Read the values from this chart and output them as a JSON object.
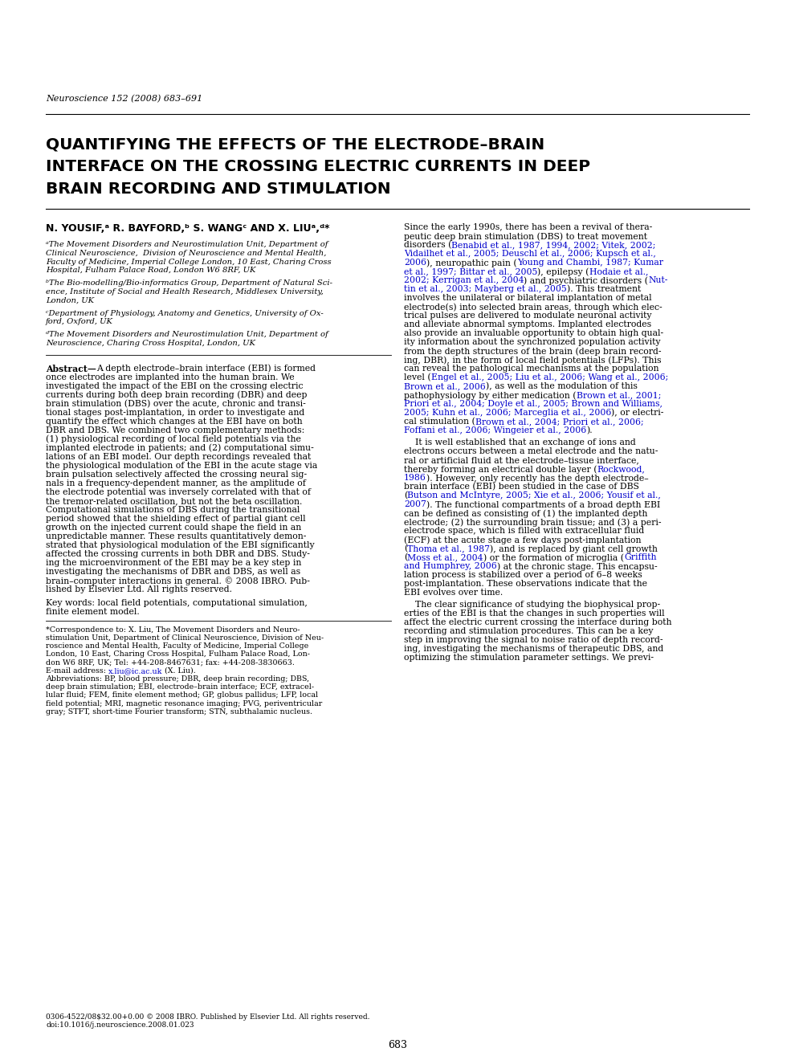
{
  "page_bg": "#ffffff",
  "journal_header": "Neuroscience 152 (2008) 683–691",
  "title_lines": [
    "QUANTIFYING THE EFFECTS OF THE ELECTRODE–BRAIN",
    "INTERFACE ON THE CROSSING ELECTRIC CURRENTS IN DEEP",
    "BRAIN RECORDING AND STIMULATION"
  ],
  "authors_line": "N. YOUSIF,ᵃ R. BAYFORD,ᵇ S. WANGᶜ AND X. LIUᵃ,ᵈ*",
  "affil_a_lines": [
    "ᵃThe Movement Disorders and Neurostimulation Unit, Department of",
    "Clinical Neuroscience,  Division of Neuroscience and Mental Health,",
    "Faculty of Medicine, Imperial College London, 10 East, Charing Cross",
    "Hospital, Fulham Palace Road, London W6 8RF, UK"
  ],
  "affil_b_lines": [
    "ᵇThe Bio-modelling/Bio-informatics Group, Department of Natural Sci-",
    "ence, Institute of Social and Health Research, Middlesex University,",
    "London, UK"
  ],
  "affil_c_lines": [
    "ᶜDepartment of Physiology, Anatomy and Genetics, University of Ox-",
    "ford, Oxford, UK"
  ],
  "affil_d_lines": [
    "ᵈThe Movement Disorders and Neurostimulation Unit, Department of",
    "Neuroscience, Charing Cross Hospital, London, UK"
  ],
  "abstract_lines": [
    [
      [
        "Abstract—",
        "bold"
      ],
      [
        "A depth electrode–brain interface (EBI) is formed",
        "normal"
      ]
    ],
    [
      [
        "once electrodes are implanted into the human brain. We",
        "normal"
      ]
    ],
    [
      [
        "investigated the impact of the EBI on the crossing electric",
        "normal"
      ]
    ],
    [
      [
        "currents during both deep brain recording (DBR) and deep",
        "normal"
      ]
    ],
    [
      [
        "brain stimulation (DBS) over the acute, chronic and transi-",
        "normal"
      ]
    ],
    [
      [
        "tional stages post-implantation, in order to investigate and",
        "normal"
      ]
    ],
    [
      [
        "quantify the effect which changes at the EBI have on both",
        "normal"
      ]
    ],
    [
      [
        "DBR and DBS. We combined two complementary methods:",
        "normal"
      ]
    ],
    [
      [
        "(1) physiological recording of local field potentials via the",
        "normal"
      ]
    ],
    [
      [
        "implanted electrode in patients; and (2) computational simu-",
        "normal"
      ]
    ],
    [
      [
        "lations of an EBI model. Our depth recordings revealed that",
        "normal"
      ]
    ],
    [
      [
        "the physiological modulation of the EBI in the acute stage via",
        "normal"
      ]
    ],
    [
      [
        "brain pulsation selectively affected the crossing neural sig-",
        "normal"
      ]
    ],
    [
      [
        "nals in a frequency-dependent manner, as the amplitude of",
        "normal"
      ]
    ],
    [
      [
        "the electrode potential was inversely correlated with that of",
        "normal"
      ]
    ],
    [
      [
        "the tremor-related oscillation, but not the beta oscillation.",
        "normal"
      ]
    ],
    [
      [
        "Computational simulations of DBS during the transitional",
        "normal"
      ]
    ],
    [
      [
        "period showed that the shielding effect of partial giant cell",
        "normal"
      ]
    ],
    [
      [
        "growth on the injected current could shape the field in an",
        "normal"
      ]
    ],
    [
      [
        "unpredictable manner. These results quantitatively demon-",
        "normal"
      ]
    ],
    [
      [
        "strated that physiological modulation of the EBI significantly",
        "normal"
      ]
    ],
    [
      [
        "affected the crossing currents in both DBR and DBS. Study-",
        "normal"
      ]
    ],
    [
      [
        "ing the microenvironment of the EBI may be a key step in",
        "normal"
      ]
    ],
    [
      [
        "investigating the mechanisms of DBR and DBS, as well as",
        "normal"
      ]
    ],
    [
      [
        "brain–computer interactions in general. © 2008 IBRO. Pub-",
        "normal"
      ]
    ],
    [
      [
        "lished by Elsevier Ltd. All rights reserved.",
        "normal"
      ]
    ]
  ],
  "kw_lines": [
    "Key words: local field potentials, computational simulation,",
    "finite element model."
  ],
  "corr_lines": [
    "*Correspondence to: X. Liu, The Movement Disorders and Neuro-",
    "stimulation Unit, Department of Clinical Neuroscience, Division of Neu-",
    "roscience and Mental Health, Faculty of Medicine, Imperial College",
    "London, 10 East, Charing Cross Hospital, Fulham Palace Road, Lon-",
    "don W6 8RF, UK; Tel: +44-208-8467631; fax: +44-208-3830663."
  ],
  "email_prefix": "E-mail address: ",
  "email_link": "x.liu@ic.ac.uk",
  "email_suffix": " (X. Liu).",
  "abbr_lines": [
    "Abbreviations: BP, blood pressure; DBR, deep brain recording; DBS,",
    "deep brain stimulation; EBI, electrode–brain interface; ECF, extracel-",
    "lular fluid; FEM, finite element method; GP, globus pallidus; LFP, local",
    "field potential; MRI, magnetic resonance imaging; PVG, periventricular",
    "gray; STFT, short-time Fourier transform; STN, subthalamic nucleus."
  ],
  "copyright_lines": [
    "0306-4522/08$32.00+0.00 © 2008 IBRO. Published by Elsevier Ltd. All rights reserved.",
    "doi:10.1016/j.neuroscience.2008.01.023"
  ],
  "page_number": "683",
  "rc_p1": [
    [
      [
        "Since the early 1990s, there has been a revival of thera-",
        "black"
      ]
    ],
    [
      [
        "peutic deep brain stimulation (DBS) to treat movement",
        "black"
      ]
    ],
    [
      [
        "disorders (",
        "black"
      ],
      [
        "Benabid et al., 1987, 1994, 2002; Vitek, 2002;",
        "blue"
      ]
    ],
    [
      [
        "Vidailhet et al., 2005; Deuschl et al., 2006; Kupsch et al.,",
        "blue"
      ]
    ],
    [
      [
        "2006",
        "blue"
      ],
      [
        "), neuropathic pain (",
        "black"
      ],
      [
        "Young and Chambi, 1987; Kumar",
        "blue"
      ]
    ],
    [
      [
        "et al., 1997; Bittar et al., 2005",
        "blue"
      ],
      [
        "), epilepsy (",
        "black"
      ],
      [
        "Hodaie et al.,",
        "blue"
      ]
    ],
    [
      [
        "2002; Kerrigan et al., 2004",
        "blue"
      ],
      [
        ") and psychiatric disorders (",
        "black"
      ],
      [
        "Nut-",
        "blue"
      ]
    ],
    [
      [
        "tin et al., 2003; Mayberg et al., 2005",
        "blue"
      ],
      [
        "). This treatment",
        "black"
      ]
    ],
    [
      [
        "involves the unilateral or bilateral implantation of metal",
        "black"
      ]
    ],
    [
      [
        "electrode(s) into selected brain areas, through which elec-",
        "black"
      ]
    ],
    [
      [
        "trical pulses are delivered to modulate neuronal activity",
        "black"
      ]
    ],
    [
      [
        "and alleviate abnormal symptoms. Implanted electrodes",
        "black"
      ]
    ],
    [
      [
        "also provide an invaluable opportunity to obtain high qual-",
        "black"
      ]
    ],
    [
      [
        "ity information about the synchronized population activity",
        "black"
      ]
    ],
    [
      [
        "from the depth structures of the brain (deep brain record-",
        "black"
      ]
    ],
    [
      [
        "ing, DBR), in the form of local field potentials (LFPs). This",
        "black"
      ]
    ],
    [
      [
        "can reveal the pathological mechanisms at the population",
        "black"
      ]
    ],
    [
      [
        "level (",
        "black"
      ],
      [
        "Engel et al., 2005; Liu et al., 2006; Wang et al., 2006;",
        "blue"
      ]
    ],
    [
      [
        "Brown et al., 2006",
        "blue"
      ],
      [
        "), as well as the modulation of this",
        "black"
      ]
    ],
    [
      [
        "pathophysiology by either medication (",
        "black"
      ],
      [
        "Brown et al., 2001;",
        "blue"
      ]
    ],
    [
      [
        "Priori et al., 2004; Doyle et al., 2005; Brown and Williams,",
        "blue"
      ]
    ],
    [
      [
        "2005; Kuhn et al., 2006; Marceglia et al., 2006",
        "blue"
      ],
      [
        "), or electri-",
        "black"
      ]
    ],
    [
      [
        "cal stimulation (",
        "black"
      ],
      [
        "Brown et al., 2004; Priori et al., 2006;",
        "blue"
      ]
    ],
    [
      [
        "Foffani et al., 2006; Wingeier et al., 2006",
        "blue"
      ],
      [
        ").",
        "black"
      ]
    ]
  ],
  "rc_p2": [
    [
      [
        "    It is well established that an exchange of ions and",
        "black"
      ]
    ],
    [
      [
        "electrons occurs between a metal electrode and the natu-",
        "black"
      ]
    ],
    [
      [
        "ral or artificial fluid at the electrode–tissue interface,",
        "black"
      ]
    ],
    [
      [
        "thereby forming an electrical double layer (",
        "black"
      ],
      [
        "Rockwood,",
        "blue"
      ]
    ],
    [
      [
        "1986",
        "blue"
      ],
      [
        "). However, only recently has the depth electrode–",
        "black"
      ]
    ],
    [
      [
        "brain interface (EBI) been studied in the case of DBS",
        "black"
      ]
    ],
    [
      [
        "(",
        "black"
      ],
      [
        "Butson and McIntyre, 2005; Xie et al., 2006; Yousif et al.,",
        "blue"
      ]
    ],
    [
      [
        "2007",
        "blue"
      ],
      [
        "). The functional compartments of a broad depth EBI",
        "black"
      ]
    ],
    [
      [
        "can be defined as consisting of (1) the implanted depth",
        "black"
      ]
    ],
    [
      [
        "electrode; (2) the surrounding brain tissue; and (3) a peri-",
        "black"
      ]
    ],
    [
      [
        "electrode space, which is filled with extracellular fluid",
        "black"
      ]
    ],
    [
      [
        "(ECF) at the acute stage a few days post-implantation",
        "black"
      ]
    ],
    [
      [
        "(",
        "black"
      ],
      [
        "Thoma et al., 1987",
        "blue"
      ],
      [
        "), and is replaced by giant cell growth",
        "black"
      ]
    ],
    [
      [
        "(",
        "black"
      ],
      [
        "Moss et al., 2004",
        "blue"
      ],
      [
        ") or the formation of microglia (",
        "black"
      ],
      [
        "Griffith",
        "blue"
      ]
    ],
    [
      [
        "and Humphrey, 2006",
        "blue"
      ],
      [
        ") at the chronic stage. This encapsu-",
        "black"
      ]
    ],
    [
      [
        "lation process is stabilized over a period of 6–8 weeks",
        "black"
      ]
    ],
    [
      [
        "post-implantation. These observations indicate that the",
        "black"
      ]
    ],
    [
      [
        "EBI evolves over time.",
        "black"
      ]
    ]
  ],
  "rc_p3": [
    [
      [
        "    The clear significance of studying the biophysical prop-",
        "black"
      ]
    ],
    [
      [
        "erties of the EBI is that the changes in such properties will",
        "black"
      ]
    ],
    [
      [
        "affect the electric current crossing the interface during both",
        "black"
      ]
    ],
    [
      [
        "recording and stimulation procedures. This can be a key",
        "black"
      ]
    ],
    [
      [
        "step in improving the signal to noise ratio of depth record-",
        "black"
      ]
    ],
    [
      [
        "ing, investigating the mechanisms of therapeutic DBS, and",
        "black"
      ]
    ],
    [
      [
        "optimizing the stimulation parameter settings. We previ-",
        "black"
      ]
    ]
  ],
  "blue_color": "#0000CC",
  "black_color": "#000000"
}
